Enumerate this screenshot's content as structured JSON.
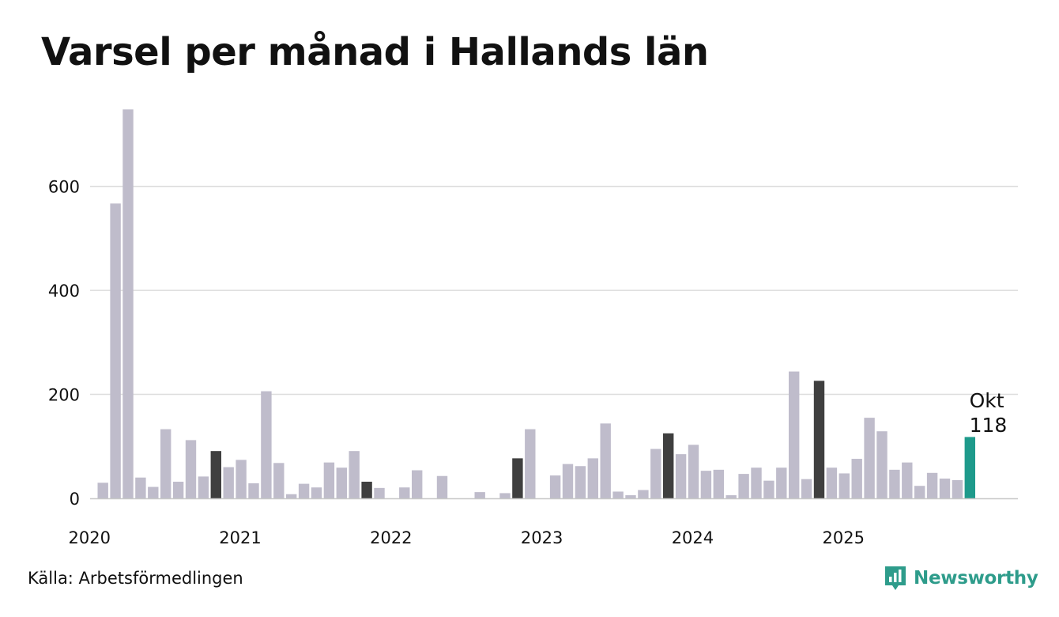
{
  "title": "Varsel per månad i Hallands län",
  "source": "Källa: Arbetsförmedlingen",
  "logo": {
    "text": "Newsworthy",
    "icon": "newsworthy-logo-icon",
    "color": "#2e9c8b"
  },
  "colors": {
    "default_bar": "#bfbccb",
    "october_bar": "#3f3f3f",
    "latest_bar": "#1e9a8b",
    "grid": "#dcdcdc",
    "axis": "#c8c8c8"
  },
  "chart_data": {
    "type": "bar",
    "title": "Varsel per månad i Hallands län",
    "xlabel": "",
    "ylabel": "",
    "ylim": [
      0,
      750
    ],
    "yticks": [
      0,
      200,
      400,
      600
    ],
    "grid": true,
    "year_labels": [
      {
        "label": "2020",
        "month_index": 0
      },
      {
        "label": "2021",
        "month_index": 12
      },
      {
        "label": "2022",
        "month_index": 24
      },
      {
        "label": "2023",
        "month_index": 36
      },
      {
        "label": "2024",
        "month_index": 48
      },
      {
        "label": "2025",
        "month_index": 60
      }
    ],
    "categories": [
      "2020-01",
      "2020-02",
      "2020-03",
      "2020-04",
      "2020-05",
      "2020-06",
      "2020-07",
      "2020-08",
      "2020-09",
      "2020-10",
      "2020-11",
      "2020-12",
      "2021-01",
      "2021-02",
      "2021-03",
      "2021-04",
      "2021-05",
      "2021-06",
      "2021-07",
      "2021-08",
      "2021-09",
      "2021-10",
      "2021-11",
      "2021-12",
      "2022-01",
      "2022-02",
      "2022-03",
      "2022-04",
      "2022-05",
      "2022-06",
      "2022-07",
      "2022-08",
      "2022-09",
      "2022-10",
      "2022-11",
      "2022-12",
      "2023-01",
      "2023-02",
      "2023-03",
      "2023-04",
      "2023-05",
      "2023-06",
      "2023-07",
      "2023-08",
      "2023-09",
      "2023-10",
      "2023-11",
      "2023-12",
      "2024-01",
      "2024-02",
      "2024-03",
      "2024-04",
      "2024-05",
      "2024-06",
      "2024-07",
      "2024-08",
      "2024-09",
      "2024-10",
      "2024-11",
      "2024-12",
      "2025-01",
      "2025-02",
      "2025-03",
      "2025-04",
      "2025-05",
      "2025-06",
      "2025-07",
      "2025-08",
      "2025-09",
      "2025-10"
    ],
    "values": [
      30,
      567,
      748,
      40,
      22,
      133,
      32,
      112,
      42,
      91,
      60,
      74,
      29,
      206,
      68,
      8,
      28,
      21,
      69,
      59,
      91,
      32,
      20,
      0,
      21,
      54,
      0,
      43,
      0,
      0,
      12,
      0,
      10,
      77,
      133,
      0,
      44,
      66,
      62,
      77,
      144,
      13,
      6,
      16,
      95,
      125,
      85,
      103,
      53,
      55,
      6,
      47,
      59,
      34,
      59,
      244,
      37,
      226,
      59,
      48,
      76,
      155,
      129,
      55,
      69,
      24,
      49,
      38,
      35,
      118
    ],
    "highlight_month": "10",
    "annotation": {
      "month_label": "Okt",
      "value_label": "118",
      "target": "2025-10"
    }
  }
}
